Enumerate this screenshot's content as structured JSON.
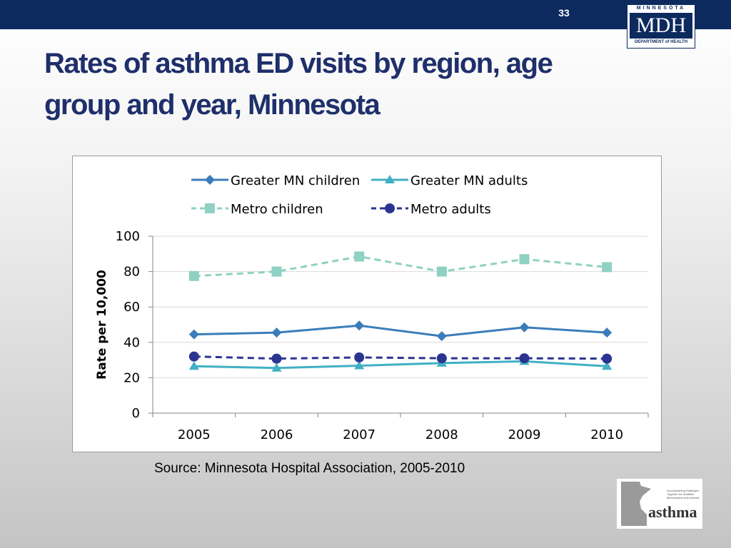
{
  "slide": {
    "number": "33",
    "title": "Rates of asthma ED visits by region, age group and year, Minnesota",
    "source": "Source: Minnesota Hospital Association, 2005-2010"
  },
  "logo": {
    "top": "MINNESOTA",
    "mid": "MDH",
    "bottom": "DEPARTMENT of HEALTH"
  },
  "asthma_logo": {
    "word": "asthma",
    "tagline": "Accomplishing Strategies Together for Healthier Minnesotans with Asthma"
  },
  "chart_data": {
    "type": "line",
    "title": "",
    "xlabel": "",
    "ylabel": "Rate per 10,000",
    "categories": [
      "2005",
      "2006",
      "2007",
      "2008",
      "2009",
      "2010"
    ],
    "ylim": [
      0,
      100
    ],
    "yticks": [
      "0",
      "20",
      "40",
      "60",
      "80",
      "100"
    ],
    "grid": true,
    "legend": "top",
    "series": [
      {
        "name": "Greater MN children",
        "values": [
          44.5,
          45.5,
          49.5,
          43.5,
          48.5,
          45.5
        ],
        "color": "#3a7dba",
        "marker": "diamond",
        "dash": false
      },
      {
        "name": "Greater MN adults",
        "values": [
          26.5,
          25.5,
          26.8,
          28.3,
          29.3,
          26.5
        ],
        "color": "#40b0c4",
        "marker": "triangle",
        "dash": false
      },
      {
        "name": "Metro children",
        "values": [
          77.5,
          80,
          88.5,
          80,
          87,
          82.5
        ],
        "color": "#8fd1c2",
        "marker": "square",
        "dash": true
      },
      {
        "name": "Metro adults",
        "values": [
          32,
          30.8,
          31.5,
          31,
          31,
          30.8
        ],
        "color": "#2b3591",
        "marker": "circle",
        "dash": true
      }
    ]
  }
}
